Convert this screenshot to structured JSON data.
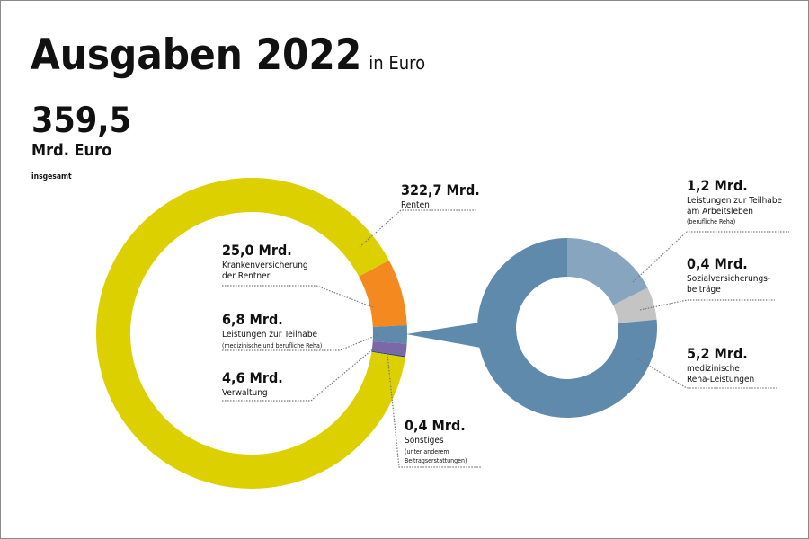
{
  "header": {
    "title": "Ausgaben 2022",
    "title_suffix": "in Euro",
    "total_value": "359,5",
    "total_unit": "Mrd. Euro",
    "total_label": "insgesamt"
  },
  "labels": {
    "renten": {
      "value": "322,7 Mrd.",
      "text": "Renten"
    },
    "kvdr": {
      "value": "25,0 Mrd.",
      "text1": "Krankenversicherung",
      "text2": "der Rentner"
    },
    "teilhabe": {
      "value": "6,8 Mrd.",
      "text": "Leistungen zur Teilhabe",
      "sub": "(medizinische und berufliche Reha)"
    },
    "verwaltung": {
      "value": "4,6 Mrd.",
      "text": "Verwaltung"
    },
    "sonstiges": {
      "value": "0,4 Mrd.",
      "text": "Sonstiges",
      "sub1": "(unter anderem",
      "sub2": "Beitragserstattungen)"
    },
    "arbeitsleben": {
      "value": "1,2 Mrd.",
      "text1": "Leistungen zur Teilhabe",
      "text2": "am Arbeitsleben",
      "sub": "(berufliche Reha)"
    },
    "sozialvers": {
      "value": "0,4 Mrd.",
      "text1": "Sozialversicherungs-",
      "text2": "beiträge"
    },
    "medreha": {
      "value": "5,2 Mrd.",
      "text1": "medizinische",
      "text2": "Reha-Leistungen"
    }
  },
  "colors": {
    "renten": "#ddd000",
    "kvdr": "#f4891f",
    "teilhabe": "#5f8aab",
    "verwaltung": "#7b68a8",
    "sonstiges": "#1d3f7a",
    "arbeitsleben": "#88a5c0",
    "sozialvers": "#c4c4c4",
    "medreha": "#5f8aab"
  },
  "chart_data": [
    {
      "type": "pie",
      "title": "Ausgaben 2022 (in Euro) – 359,5 Mrd. Euro insgesamt",
      "unit": "Mrd. Euro",
      "donut": true,
      "categories": [
        "Renten",
        "Krankenversicherung der Rentner",
        "Leistungen zur Teilhabe (medizinische und berufliche Reha)",
        "Verwaltung",
        "Sonstiges (unter anderem Beitragserstattungen)"
      ],
      "values": [
        322.7,
        25.0,
        6.8,
        4.6,
        0.4
      ],
      "total": 359.5
    },
    {
      "type": "pie",
      "title": "Aufschlüsselung Leistungen zur Teilhabe (6,8 Mrd.)",
      "unit": "Mrd. Euro",
      "donut": true,
      "categories": [
        "Leistungen zur Teilhabe am Arbeitsleben (berufliche Reha)",
        "Sozialversicherungsbeiträge",
        "medizinische Reha-Leistungen"
      ],
      "values": [
        1.2,
        0.4,
        5.2
      ],
      "total": 6.8
    }
  ]
}
